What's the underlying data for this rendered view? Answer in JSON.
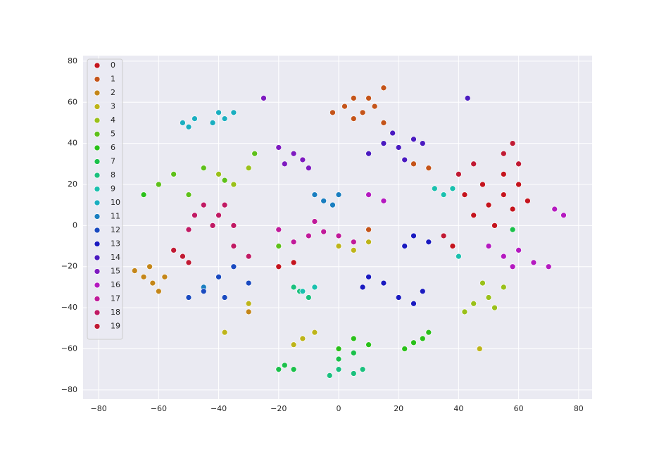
{
  "chart_data": {
    "type": "scatter",
    "xlim": [
      -85.2,
      84.5
    ],
    "ylim": [
      -84.5,
      82.7
    ],
    "xticks": [
      {
        "value": -80,
        "label": "−80"
      },
      {
        "value": -60,
        "label": "−60"
      },
      {
        "value": -40,
        "label": "−40"
      },
      {
        "value": -20,
        "label": "−20"
      },
      0,
      20,
      40,
      60,
      80
    ],
    "yticks": [
      {
        "value": -80,
        "label": "−80"
      },
      {
        "value": -60,
        "label": "−60"
      },
      {
        "value": -40,
        "label": "−40"
      },
      {
        "value": -20,
        "label": "−20"
      },
      0,
      20,
      40,
      60,
      80
    ],
    "grid": true,
    "legend": "upper left",
    "series": [
      {
        "name": "0",
        "color": "#c4141e",
        "x": [
          45,
          50,
          55,
          60,
          52,
          58,
          63,
          48,
          55,
          40,
          42,
          38,
          -20,
          -15
        ],
        "y": [
          5,
          10,
          15,
          20,
          0,
          8,
          12,
          20,
          25,
          25,
          15,
          -10,
          -20,
          -18
        ]
      },
      {
        "name": "1",
        "color": "#c4541a",
        "x": [
          2,
          5,
          8,
          12,
          15,
          10,
          5,
          15,
          25,
          30,
          10,
          -2
        ],
        "y": [
          58,
          52,
          55,
          58,
          50,
          62,
          62,
          67,
          30,
          28,
          -2,
          55
        ]
      },
      {
        "name": "2",
        "color": "#c4861a",
        "x": [
          -65,
          -62,
          -68,
          -60,
          -58,
          -30,
          -63
        ],
        "y": [
          -25,
          -28,
          -22,
          -32,
          -25,
          -42,
          -20
        ]
      },
      {
        "name": "3",
        "color": "#bdb41a",
        "x": [
          -12,
          -8,
          -15,
          47,
          -38,
          0,
          5,
          10,
          -30
        ],
        "y": [
          -55,
          -52,
          -58,
          -60,
          -52,
          -10,
          -12,
          -8,
          -38
        ]
      },
      {
        "name": "4",
        "color": "#9ac01a",
        "x": [
          50,
          45,
          55,
          48,
          52,
          42,
          -40,
          -35,
          -30
        ],
        "y": [
          -35,
          -38,
          -30,
          -28,
          -40,
          -42,
          25,
          20,
          28
        ]
      },
      {
        "name": "5",
        "color": "#5ec01a",
        "x": [
          -60,
          -55,
          -50,
          -38,
          -45,
          -28,
          -20
        ],
        "y": [
          20,
          25,
          15,
          22,
          28,
          35,
          -10
        ]
      },
      {
        "name": "6",
        "color": "#2ac01a",
        "x": [
          25,
          28,
          22,
          30,
          5,
          10,
          0,
          -65
        ],
        "y": [
          -57,
          -55,
          -60,
          -52,
          -55,
          -58,
          -60,
          15
        ]
      },
      {
        "name": "7",
        "color": "#1ac04a",
        "x": [
          -18,
          -15,
          -20,
          0,
          5,
          58
        ],
        "y": [
          -68,
          -70,
          -70,
          -65,
          -62,
          -2
        ]
      },
      {
        "name": "8",
        "color": "#1ac07e",
        "x": [
          0,
          5,
          -3,
          8,
          -15,
          -10,
          -13
        ],
        "y": [
          -70,
          -72,
          -73,
          -70,
          -30,
          -35,
          -32
        ]
      },
      {
        "name": "9",
        "color": "#1ac0ae",
        "x": [
          -12,
          -8,
          35,
          32,
          38,
          40
        ],
        "y": [
          -32,
          -30,
          15,
          18,
          18,
          -15
        ]
      },
      {
        "name": "10",
        "color": "#1aaec0",
        "x": [
          -40,
          -38,
          -35,
          -42,
          -52,
          -50,
          -48
        ],
        "y": [
          55,
          52,
          55,
          50,
          50,
          48,
          52
        ]
      },
      {
        "name": "11",
        "color": "#1a7ec0",
        "x": [
          -5,
          -2,
          -8,
          0,
          -45,
          -40
        ],
        "y": [
          12,
          10,
          15,
          15,
          -30,
          -25
        ]
      },
      {
        "name": "12",
        "color": "#1a4ac0",
        "x": [
          -40,
          -35,
          -30,
          -45,
          -50,
          -38
        ],
        "y": [
          -25,
          -20,
          -28,
          -32,
          -35,
          -35
        ]
      },
      {
        "name": "13",
        "color": "#1a1ac0",
        "x": [
          10,
          8,
          15,
          20,
          25,
          28,
          25,
          22,
          30
        ],
        "y": [
          -25,
          -30,
          -28,
          -35,
          -38,
          -32,
          -5,
          -10,
          -8
        ]
      },
      {
        "name": "14",
        "color": "#4a1ac0",
        "x": [
          15,
          20,
          25,
          10,
          18,
          22,
          28,
          43
        ],
        "y": [
          40,
          38,
          42,
          35,
          45,
          32,
          40,
          62
        ]
      },
      {
        "name": "15",
        "color": "#7e1ac0",
        "x": [
          -15,
          -18,
          -12,
          -20,
          -10,
          -25
        ],
        "y": [
          35,
          30,
          32,
          38,
          28,
          62
        ]
      },
      {
        "name": "16",
        "color": "#b41ac0",
        "x": [
          55,
          60,
          65,
          50,
          70,
          58,
          10,
          15,
          75,
          72
        ],
        "y": [
          -15,
          -12,
          -18,
          -10,
          -20,
          -20,
          15,
          12,
          5,
          8
        ]
      },
      {
        "name": "17",
        "color": "#c01a9a",
        "x": [
          -10,
          -5,
          -15,
          0,
          -20,
          -8,
          5
        ],
        "y": [
          -5,
          -3,
          -8,
          -5,
          -2,
          2,
          -8
        ]
      },
      {
        "name": "18",
        "color": "#c01a64",
        "x": [
          -40,
          -45,
          -35,
          -42,
          -48,
          -38,
          -50,
          -30,
          -35
        ],
        "y": [
          5,
          10,
          0,
          0,
          5,
          10,
          -2,
          -15,
          -10
        ]
      },
      {
        "name": "19",
        "color": "#c01a34",
        "x": [
          -55,
          -52,
          -50,
          45,
          40,
          55,
          60,
          58,
          35
        ],
        "y": [
          -12,
          -15,
          -18,
          30,
          25,
          35,
          30,
          40,
          -5
        ]
      }
    ]
  }
}
